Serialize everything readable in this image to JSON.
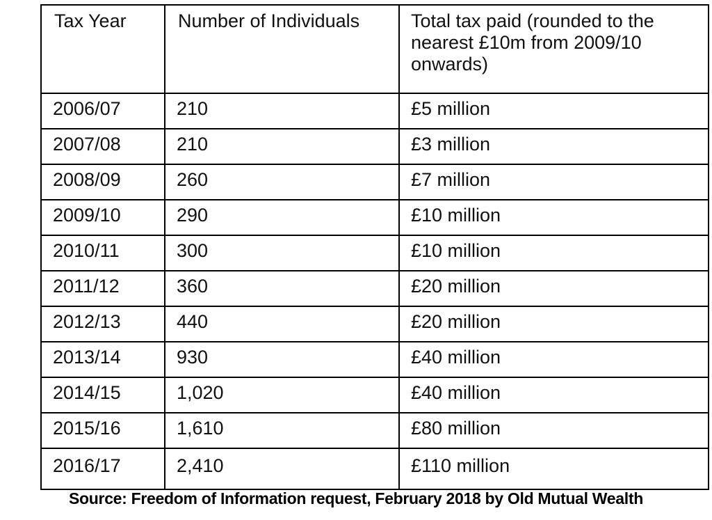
{
  "table": {
    "headers": [
      "Tax Year",
      "Number of Individuals",
      "Total tax paid (rounded to the nearest £10m from 2009/10 onwards)"
    ],
    "rows": [
      {
        "year": "2006/07",
        "individuals": "210",
        "tax": "£5 million"
      },
      {
        "year": "2007/08",
        "individuals": "210",
        "tax": "£3 million"
      },
      {
        "year": "2008/09",
        "individuals": "260",
        "tax": "£7 million"
      },
      {
        "year": "2009/10",
        "individuals": "290",
        "tax": "£10 million"
      },
      {
        "year": "2010/11",
        "individuals": "300",
        "tax": "£10 million"
      },
      {
        "year": "2011/12",
        "individuals": "360",
        "tax": "£20 million"
      },
      {
        "year": "2012/13",
        "individuals": "440",
        "tax": "£20 million"
      },
      {
        "year": "2013/14",
        "individuals": "930",
        "tax": "£40 million"
      },
      {
        "year": "2014/15",
        "individuals": "1,020",
        "tax": "£40 million"
      },
      {
        "year": "2015/16",
        "individuals": "1,610",
        "tax": "£80 million"
      },
      {
        "year": "2016/17",
        "individuals": "2,410",
        "tax": "£110 million"
      }
    ]
  },
  "source": "Source: Freedom of Information request, February 2018 by Old Mutual Wealth"
}
